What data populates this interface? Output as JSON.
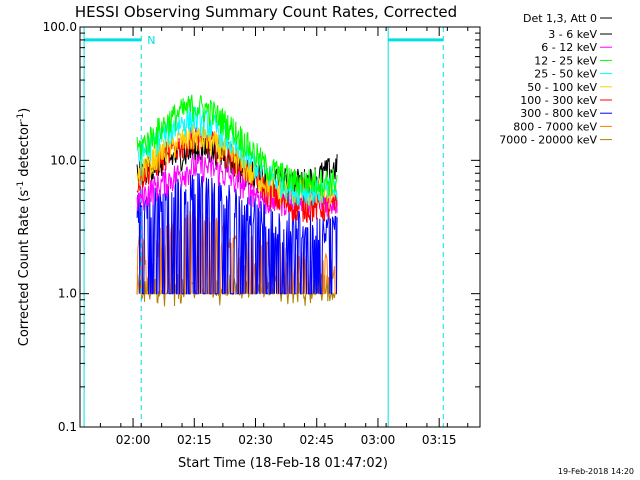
{
  "chart_data": {
    "type": "line",
    "title": "HESSI Observing Summary Count Rates, Corrected",
    "xlabel": "Start Time (18-Feb-18 01:47:02)",
    "ylabel": "Corrected Count Rate (s",
    "ylabel_sup": "-1",
    "ylabel_mid": " detector",
    "ylabel_sup2": "-1",
    "ylabel_end": ")",
    "yscale": "log",
    "ylim": [
      0.1,
      100.0
    ],
    "yticks": [
      {
        "value": 0.1,
        "label": "0.1"
      },
      {
        "value": 1.0,
        "label": "1.0"
      },
      {
        "value": 10.0,
        "label": "10.0"
      },
      {
        "value": 100.0,
        "label": "100.0"
      }
    ],
    "xlim_minutes_from_start": [
      0,
      98
    ],
    "xticks": [
      {
        "minute": 13,
        "label": "02:00"
      },
      {
        "minute": 28,
        "label": "02:15"
      },
      {
        "minute": 43,
        "label": "02:30"
      },
      {
        "minute": 58,
        "label": "02:45"
      },
      {
        "minute": 73,
        "label": "03:00"
      },
      {
        "minute": 88,
        "label": "03:15"
      }
    ],
    "legend_header": "Det 1,3, Att 0",
    "legend_position": "top-right, outside plot",
    "data_time_range_minutes": [
      14,
      63
    ],
    "series": [
      {
        "name": "3 - 6 keV",
        "color": "#000000",
        "values": [
          8,
          9,
          10,
          11,
          12,
          12,
          11,
          9,
          8,
          7,
          7,
          7,
          7,
          8,
          9
        ]
      },
      {
        "name": "6 - 12 keV",
        "color": "#ff00ff",
        "values": [
          5,
          6,
          7,
          8,
          9,
          9,
          8,
          7,
          6,
          5,
          5,
          5,
          5,
          5,
          5
        ]
      },
      {
        "name": "12 - 25 keV",
        "color": "#00ff00",
        "values": [
          12,
          15,
          19,
          23,
          26,
          24,
          20,
          16,
          12,
          9,
          8,
          7,
          7,
          7,
          7
        ]
      },
      {
        "name": "25 - 50 keV",
        "color": "#00ffff",
        "values": [
          10,
          13,
          16,
          19,
          21,
          19,
          16,
          12,
          10,
          8,
          7,
          6,
          6,
          6,
          6
        ]
      },
      {
        "name": "50 - 100 keV",
        "color": "#ffd000",
        "values": [
          8,
          10,
          12,
          14,
          15,
          14,
          12,
          10,
          8,
          7,
          6,
          6,
          6,
          6,
          6
        ]
      },
      {
        "name": "100 - 300 keV",
        "color": "#ff0000",
        "values": [
          7,
          9,
          11,
          13,
          15,
          14,
          12,
          10,
          8,
          6,
          5,
          4.5,
          4.5,
          4.5,
          4.5
        ]
      },
      {
        "name": "300 - 800 keV",
        "color": "#0000ff",
        "values": [
          4,
          4.5,
          5,
          5.5,
          6,
          5.5,
          5,
          4.5,
          4,
          3.5,
          3,
          3,
          3,
          3,
          3
        ]
      },
      {
        "name": "800 - 7000 keV",
        "color": "#ff8000",
        "values": [
          2,
          2,
          2.5,
          3,
          3,
          3,
          2.5,
          2,
          2,
          2,
          1.8,
          1.5,
          1.5,
          1.5,
          1.2
        ]
      },
      {
        "name": "7000 - 20000 keV",
        "color": "#b08000",
        "values": [
          1,
          1,
          1,
          1,
          1,
          1,
          1,
          1,
          1,
          1,
          1,
          1,
          1,
          1,
          1
        ]
      }
    ],
    "annotation": "N",
    "timestamp": "19-Feb-2018 14:20",
    "grid": false
  }
}
